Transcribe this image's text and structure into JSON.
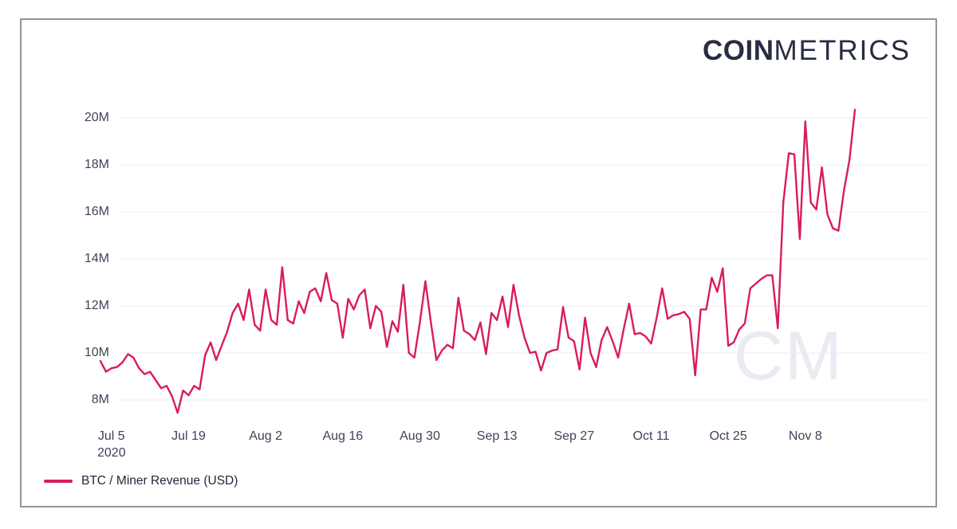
{
  "brand": {
    "logo_bold": "COIN",
    "logo_light": "METRICS",
    "watermark": "CM"
  },
  "legend": {
    "label": "BTC / Miner Revenue (USD)"
  },
  "colors": {
    "line": "#d91c5c",
    "grid": "#ededf2",
    "axis_text": "#3e4357",
    "logo": "#272c42",
    "watermark": "#e9ebf2",
    "frame_border": "#95959a"
  },
  "chart_data": {
    "type": "line",
    "title": "",
    "xlabel": "",
    "ylabel": "",
    "unit": "USD, millions (M)",
    "frequency": "daily",
    "start_date": "2020-07-03",
    "end_date": "2020-11-17",
    "grid": "horizontal-only",
    "legend_position": "bottom-left",
    "ylim": [
      7.2,
      20.6
    ],
    "y_ticks": [
      {
        "label": "8M",
        "value": 8
      },
      {
        "label": "10M",
        "value": 10
      },
      {
        "label": "12M",
        "value": 12
      },
      {
        "label": "14M",
        "value": 14
      },
      {
        "label": "16M",
        "value": 16
      },
      {
        "label": "18M",
        "value": 18
      },
      {
        "label": "20M",
        "value": 20
      }
    ],
    "x_ticks": [
      {
        "label": "Jul 5",
        "sublabel": "2020",
        "index": 2
      },
      {
        "label": "Jul 19",
        "sublabel": "",
        "index": 16
      },
      {
        "label": "Aug 2",
        "sublabel": "",
        "index": 30
      },
      {
        "label": "Aug 16",
        "sublabel": "",
        "index": 44
      },
      {
        "label": "Aug 30",
        "sublabel": "",
        "index": 58
      },
      {
        "label": "Sep 13",
        "sublabel": "",
        "index": 72
      },
      {
        "label": "Sep 27",
        "sublabel": "",
        "index": 86
      },
      {
        "label": "Oct 11",
        "sublabel": "",
        "index": 100
      },
      {
        "label": "Oct 25",
        "sublabel": "",
        "index": 114
      },
      {
        "label": "Nov 8",
        "sublabel": "",
        "index": 128
      }
    ],
    "series": [
      {
        "name": "BTC / Miner Revenue (USD)",
        "color": "#d91c5c",
        "values_unit": "millions USD",
        "values": [
          9.65,
          9.2,
          9.35,
          9.4,
          9.6,
          9.95,
          9.8,
          9.35,
          9.1,
          9.2,
          8.85,
          8.5,
          8.6,
          8.15,
          7.45,
          8.4,
          8.2,
          8.6,
          8.45,
          9.9,
          10.45,
          9.7,
          10.3,
          10.9,
          11.7,
          12.1,
          11.4,
          12.7,
          11.2,
          10.95,
          12.7,
          11.4,
          11.2,
          13.65,
          11.4,
          11.25,
          12.2,
          11.7,
          12.6,
          12.75,
          12.2,
          13.4,
          12.25,
          12.1,
          10.65,
          12.3,
          11.85,
          12.45,
          12.7,
          11.05,
          12.0,
          11.75,
          10.25,
          11.35,
          10.9,
          12.9,
          10.0,
          9.8,
          11.3,
          13.05,
          11.3,
          9.7,
          10.1,
          10.35,
          10.2,
          12.35,
          10.95,
          10.8,
          10.55,
          11.3,
          9.95,
          11.7,
          11.4,
          12.4,
          11.1,
          12.9,
          11.6,
          10.65,
          10.0,
          10.05,
          9.25,
          10.0,
          10.1,
          10.15,
          11.95,
          10.65,
          10.5,
          9.3,
          11.5,
          10.0,
          9.4,
          10.55,
          11.1,
          10.5,
          9.8,
          11.0,
          12.1,
          10.8,
          10.85,
          10.7,
          10.4,
          11.5,
          12.75,
          11.45,
          11.6,
          11.65,
          11.75,
          11.45,
          9.05,
          11.85,
          11.85,
          13.2,
          12.6,
          13.6,
          10.3,
          10.45,
          11.0,
          11.25,
          12.75,
          12.95,
          13.15,
          13.3,
          13.3,
          11.05,
          16.4,
          18.5,
          18.45,
          14.85,
          19.85,
          16.4,
          16.1,
          17.9,
          15.9,
          15.3,
          15.2,
          16.9,
          18.2,
          20.35
        ]
      }
    ]
  }
}
